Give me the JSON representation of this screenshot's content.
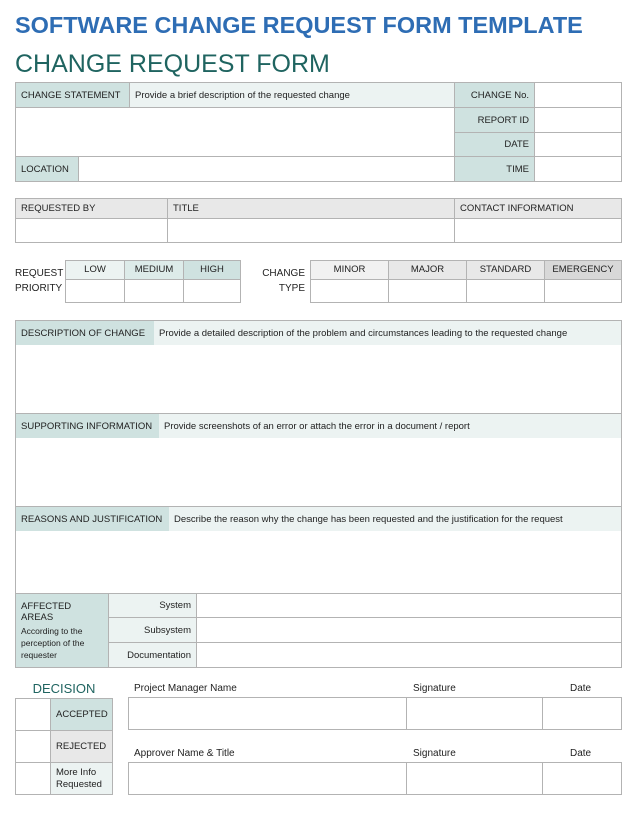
{
  "title": "SOFTWARE CHANGE REQUEST FORM TEMPLATE",
  "subtitle": "CHANGE REQUEST FORM",
  "header_table": {
    "change_statement_label": "CHANGE STATEMENT",
    "change_statement_placeholder": "Provide a brief description of the requested change",
    "location_label": "LOCATION",
    "change_no_label": "CHANGE No.",
    "report_id_label": "REPORT ID",
    "date_label": "DATE",
    "time_label": "TIME"
  },
  "requester_table": {
    "requested_by": "REQUESTED BY",
    "title": "TITLE",
    "contact_information": "CONTACT INFORMATION"
  },
  "priority": {
    "label_line1": "REQUEST",
    "label_line2": "PRIORITY",
    "options": [
      "LOW",
      "MEDIUM",
      "HIGH"
    ]
  },
  "change_type": {
    "label_line1": "CHANGE",
    "label_line2": "TYPE",
    "options": [
      "MINOR",
      "MAJOR",
      "STANDARD",
      "EMERGENCY"
    ]
  },
  "sections": [
    {
      "label": "DESCRIPTION OF CHANGE",
      "placeholder": "Provide a detailed description of the problem and circumstances leading to the requested change"
    },
    {
      "label": "SUPPORTING INFORMATION",
      "placeholder": "Provide screenshots of an error or attach the error in a document / report"
    },
    {
      "label": "REASONS AND JUSTIFICATION",
      "placeholder": "Describe the reason why the change has been requested and the justification for the request"
    }
  ],
  "affected_areas": {
    "label": "AFFECTED AREAS",
    "note": "According to the perception of the requester",
    "rows": [
      "System",
      "Subsystem",
      "Documentation"
    ]
  },
  "decision": {
    "title": "DECISION",
    "options": [
      "ACCEPTED",
      "REJECTED",
      "More Info Requested"
    ]
  },
  "signoff": {
    "pm_name": "Project Manager Name",
    "approver_name": "Approver Name & Title",
    "signature": "Signature",
    "date": "Date"
  }
}
